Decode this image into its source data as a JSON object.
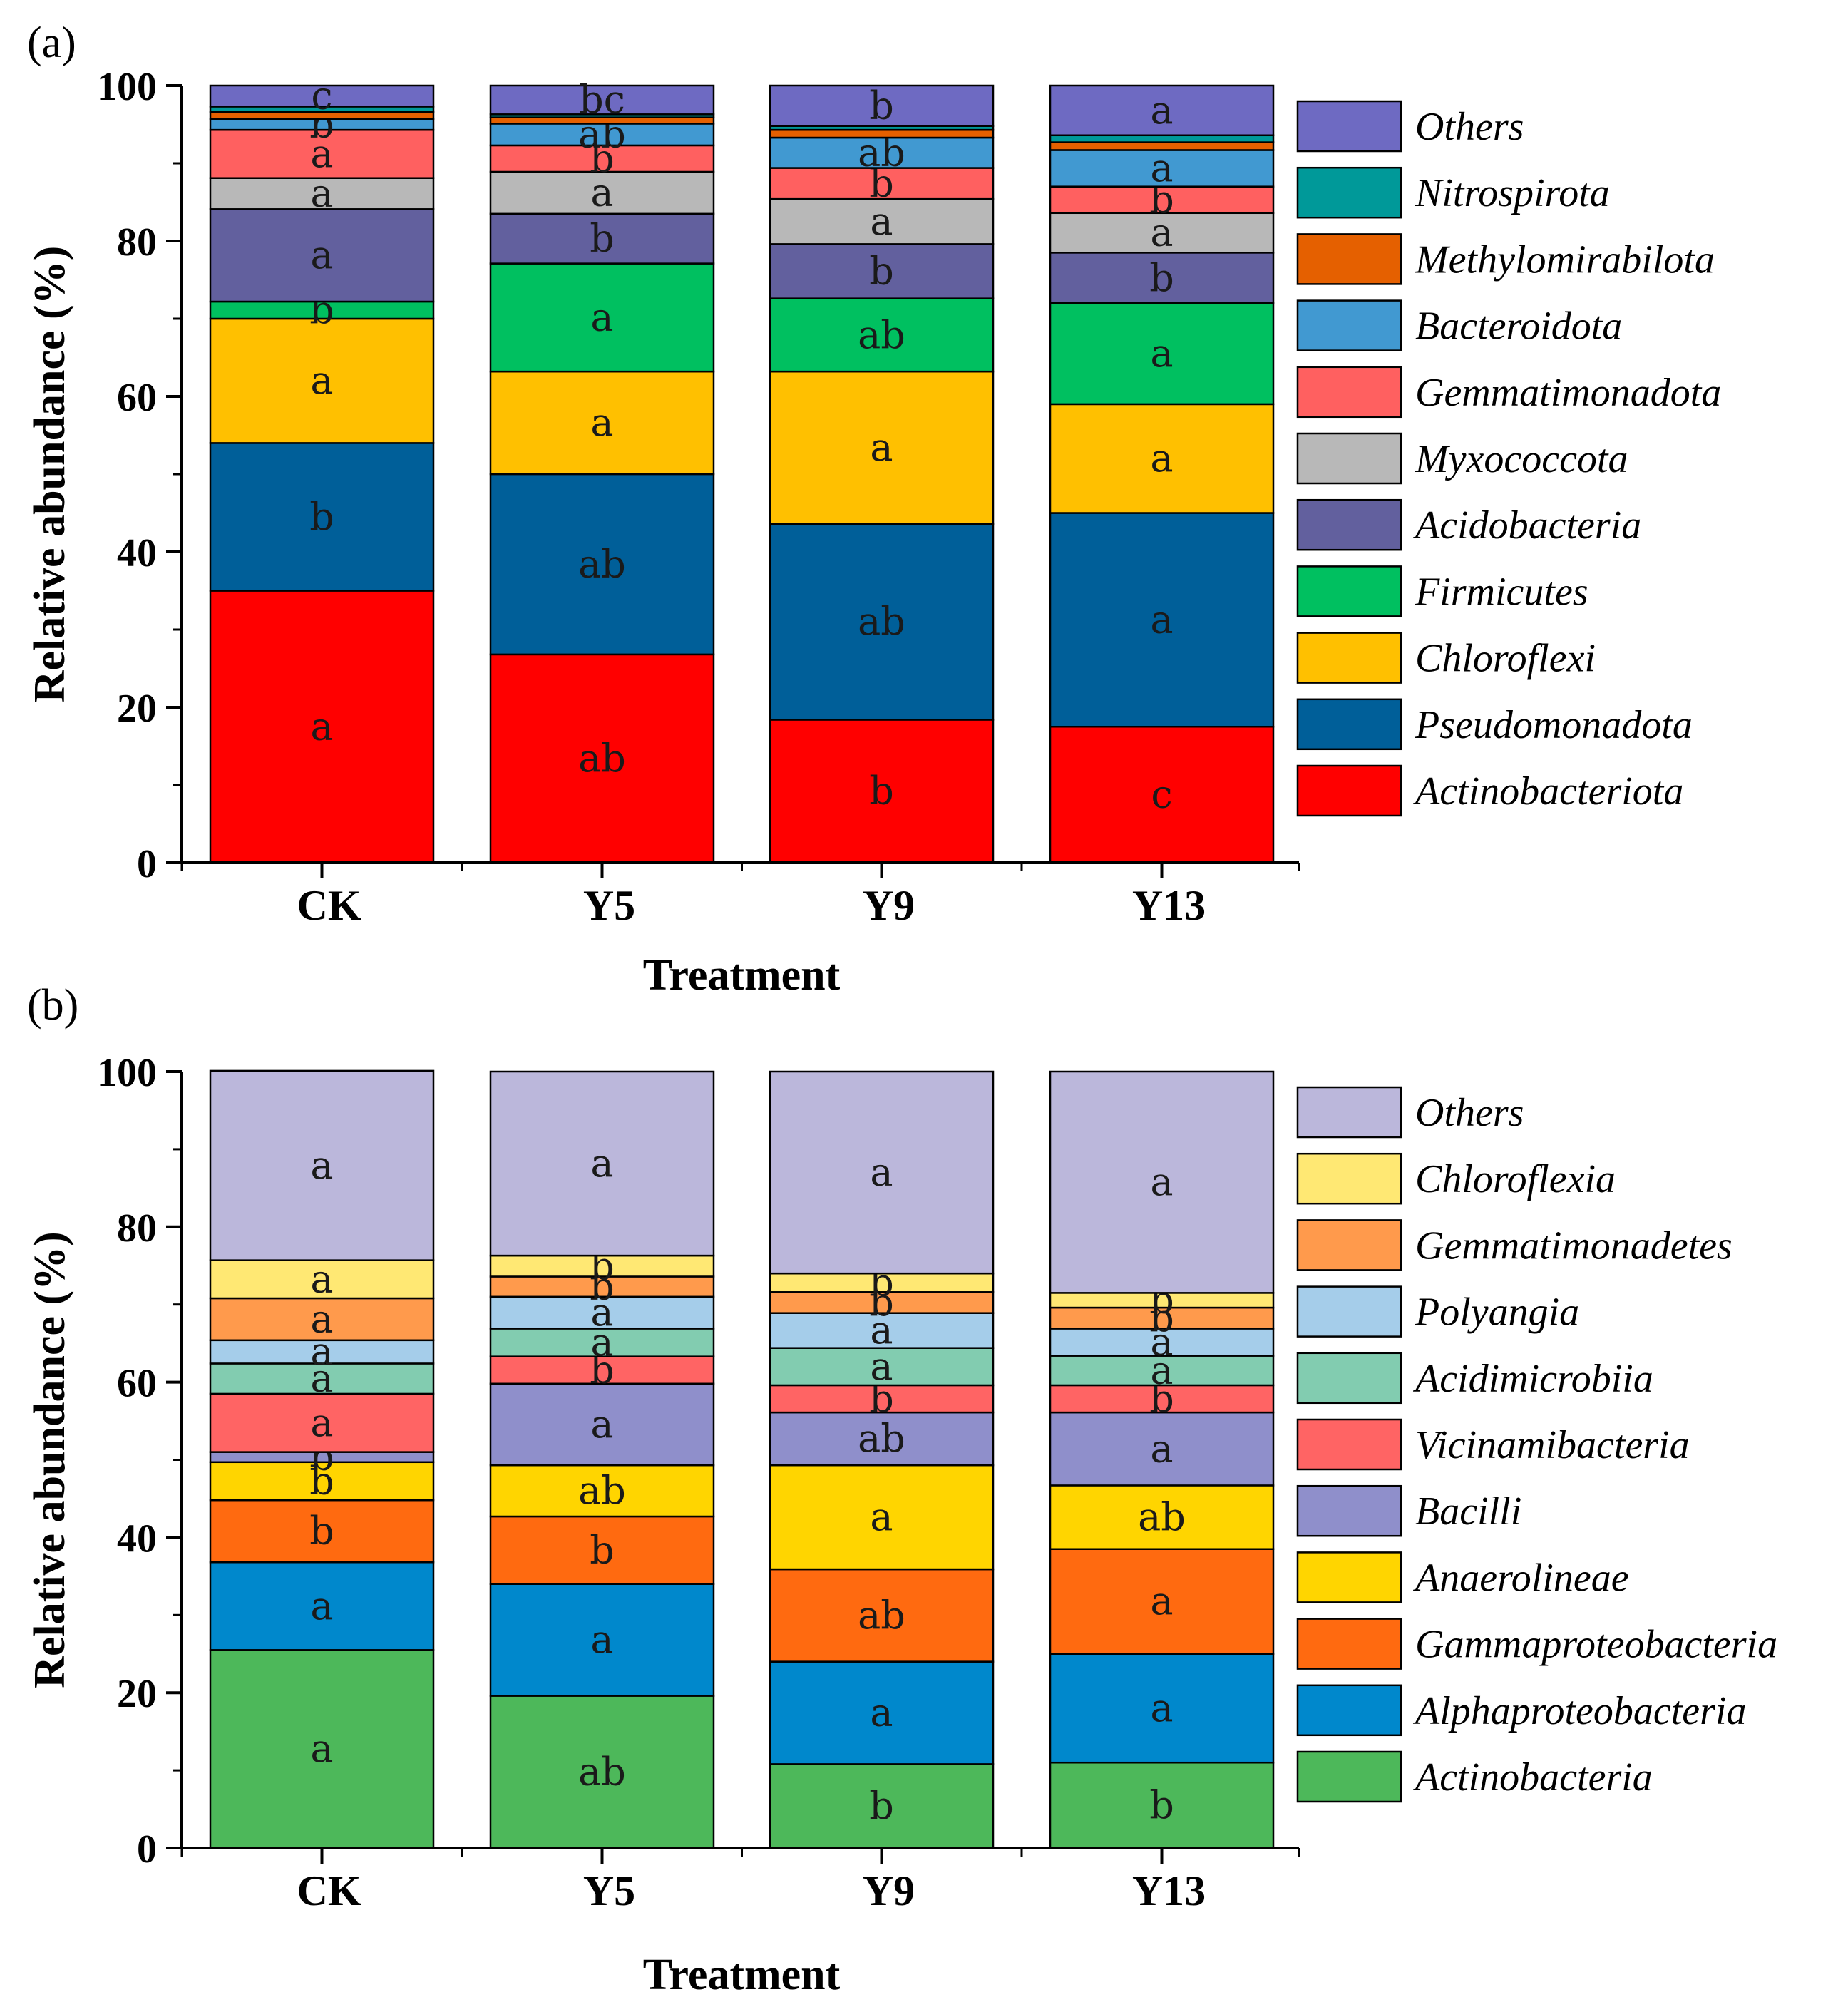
{
  "chart_data": [
    {
      "type": "bar",
      "stacked": true,
      "panel": "(a)",
      "xlabel": "Treatment",
      "ylabel": "Relative abundance (%)",
      "ylim": [
        0,
        100
      ],
      "yticks": [
        "0",
        "20",
        "40",
        "60",
        "80",
        "100"
      ],
      "categories": [
        "CK",
        "Y5",
        "Y9",
        "Y13"
      ],
      "series": [
        {
          "name": "Actinobacteriota",
          "color": "#FF0000",
          "values": [
            35.0,
            26.8,
            18.4,
            17.5
          ],
          "letters": [
            "a",
            "ab",
            "b",
            "c"
          ]
        },
        {
          "name": "Pseudomonadota",
          "color": "#005F99",
          "values": [
            19.0,
            23.2,
            25.2,
            27.5
          ],
          "letters": [
            "b",
            "ab",
            "ab",
            "a"
          ]
        },
        {
          "name": "Chloroflexi",
          "color": "#FFC000",
          "values": [
            16.0,
            13.2,
            19.6,
            14.0
          ],
          "letters": [
            "a",
            "a",
            "a",
            "a"
          ]
        },
        {
          "name": "Firmicutes",
          "color": "#00C060",
          "values": [
            2.2,
            13.9,
            9.4,
            13.0
          ],
          "letters": [
            "b",
            "a",
            "ab",
            "a"
          ]
        },
        {
          "name": "Acidobacteria",
          "color": "#62609E",
          "values": [
            11.9,
            6.4,
            7.0,
            6.5
          ],
          "letters": [
            "a",
            "b",
            "b",
            "b"
          ]
        },
        {
          "name": "Myxococcota",
          "color": "#B8B8B8",
          "values": [
            4.0,
            5.4,
            5.8,
            5.1
          ],
          "letters": [
            "a",
            "a",
            "a",
            "a"
          ]
        },
        {
          "name": "Gemmatimonadota",
          "color": "#FF6060",
          "values": [
            6.2,
            3.4,
            4.0,
            3.4
          ],
          "letters": [
            "a",
            "b",
            "b",
            "b"
          ]
        },
        {
          "name": "Bacteroidota",
          "color": "#4199D1",
          "values": [
            1.4,
            2.8,
            3.9,
            4.7
          ],
          "letters": [
            "b",
            "ab",
            "ab",
            "a"
          ]
        },
        {
          "name": "Methylomirabilota",
          "color": "#E56000",
          "values": [
            0.9,
            0.8,
            1.0,
            1.0
          ],
          "letters": [
            "",
            "",
            "",
            ""
          ]
        },
        {
          "name": "Nitrospirota",
          "color": "#009999",
          "values": [
            0.7,
            0.4,
            0.5,
            0.9
          ],
          "letters": [
            "",
            "",
            "",
            ""
          ]
        },
        {
          "name": "Others",
          "color": "#6E6AC2",
          "values": [
            2.7,
            3.7,
            5.2,
            6.4
          ],
          "letters": [
            "c",
            "bc",
            "b",
            "a"
          ]
        }
      ]
    },
    {
      "type": "bar",
      "stacked": true,
      "panel": "(b)",
      "xlabel": "Treatment",
      "ylabel": "Relative abundance (%)",
      "ylim": [
        0,
        100
      ],
      "yticks": [
        "0",
        "20",
        "40",
        "60",
        "80",
        "100"
      ],
      "categories": [
        "CK",
        "Y5",
        "Y9",
        "Y13"
      ],
      "series": [
        {
          "name": "Actinobacteria",
          "color": "#4DB85A",
          "values": [
            25.5,
            19.6,
            10.8,
            11.0
          ],
          "letters": [
            "a",
            "ab",
            "b",
            "b"
          ]
        },
        {
          "name": "Alphaproteobacteria",
          "color": "#0088CC",
          "values": [
            11.3,
            14.4,
            13.2,
            14.0
          ],
          "letters": [
            "a",
            "a",
            "a",
            "a"
          ]
        },
        {
          "name": "Gammaproteobacteria",
          "color": "#FF6A10",
          "values": [
            8.0,
            8.7,
            11.9,
            13.5
          ],
          "letters": [
            "b",
            "b",
            "ab",
            "a"
          ]
        },
        {
          "name": "Anaerolineae",
          "color": "#FFD500",
          "values": [
            4.9,
            6.6,
            13.4,
            8.2
          ],
          "letters": [
            "b",
            "ab",
            "a",
            "ab"
          ]
        },
        {
          "name": "Bacilli",
          "color": "#8F8FCB",
          "values": [
            1.3,
            10.5,
            6.8,
            9.4
          ],
          "letters": [
            "b",
            "a",
            "ab",
            "a"
          ]
        },
        {
          "name": "Vicinamibacteria",
          "color": "#FF6464",
          "values": [
            7.5,
            3.5,
            3.5,
            3.5
          ],
          "letters": [
            "a",
            "b",
            "b",
            "b"
          ]
        },
        {
          "name": "Acidimicrobiia",
          "color": "#82CCB0",
          "values": [
            3.9,
            3.6,
            4.8,
            3.8
          ],
          "letters": [
            "a",
            "a",
            "a",
            "a"
          ]
        },
        {
          "name": "Polyangia",
          "color": "#A5CDEA",
          "values": [
            3.0,
            4.1,
            4.5,
            3.5
          ],
          "letters": [
            "a",
            "a",
            "a",
            "a"
          ]
        },
        {
          "name": "Gemmatimonadetes",
          "color": "#FF9A4C",
          "values": [
            5.4,
            2.6,
            2.7,
            2.7
          ],
          "letters": [
            "a",
            "b",
            "b",
            "b"
          ]
        },
        {
          "name": "Chloroflexia",
          "color": "#FFE873",
          "values": [
            4.9,
            2.7,
            2.4,
            1.9
          ],
          "letters": [
            "a",
            "b",
            "b",
            "b"
          ]
        },
        {
          "name": "Others",
          "color": "#BBB7DB",
          "values": [
            24.4,
            23.7,
            26.0,
            28.5
          ],
          "letters": [
            "a",
            "a",
            "a",
            "a"
          ]
        }
      ]
    }
  ]
}
